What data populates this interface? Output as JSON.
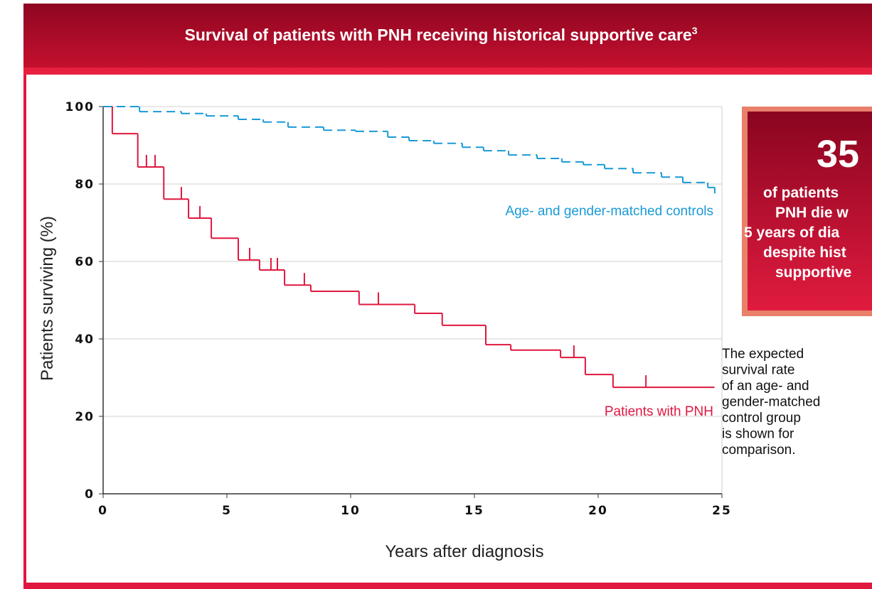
{
  "chart_data": {
    "type": "step",
    "title": "Survival of patients with PNH receiving historical supportive care",
    "title_note": "3",
    "x_label": "Years after diagnosis",
    "y_label": "Patients surviving (%)",
    "xlim": [
      0,
      25
    ],
    "xticks": [
      0,
      5,
      10,
      15,
      20,
      25
    ],
    "ylim": [
      0,
      100
    ],
    "yticks": [
      0,
      20,
      40,
      60,
      80,
      100
    ],
    "grid": true,
    "series": [
      {
        "name": "Patients with PNH",
        "color": "#e0173f",
        "style": "solid",
        "x": [
          0,
          0.37,
          1.4,
          2.45,
          3.45,
          4.37,
          5.46,
          6.32,
          7.33,
          8.39,
          10.34,
          12.59,
          13.7,
          15.46,
          16.47,
          18.48,
          19.48,
          20.6,
          24.7
        ],
        "values": [
          100,
          93.0,
          84.4,
          76.1,
          71.2,
          66.0,
          60.4,
          57.8,
          53.9,
          52.3,
          48.9,
          46.6,
          43.5,
          38.5,
          37.1,
          35.2,
          30.8,
          27.5,
          27.5
        ],
        "censored_x": [
          1.75,
          2.1,
          3.16,
          3.91,
          5.92,
          6.78,
          7.04,
          8.13,
          11.12,
          19.02,
          21.93
        ]
      },
      {
        "name": "Age- and gender-matched controls",
        "color": "#1a9ad6",
        "style": "dashed",
        "x": [
          0,
          1.47,
          3.16,
          4.17,
          5.46,
          6.47,
          7.47,
          8.91,
          10.2,
          11.5,
          12.36,
          13.36,
          14.51,
          15.37,
          16.38,
          17.53,
          18.53,
          19.4,
          20.26,
          21.41,
          22.56,
          23.42,
          24.43,
          24.71
        ],
        "values": [
          100,
          98.7,
          98.2,
          97.6,
          96.7,
          96.0,
          94.7,
          93.9,
          93.6,
          92.1,
          91.2,
          90.5,
          89.5,
          88.6,
          87.5,
          86.6,
          85.7,
          85.0,
          84.0,
          82.9,
          81.8,
          80.4,
          79.1,
          77.6
        ],
        "censored_x": []
      }
    ]
  },
  "callout": {
    "value": "35",
    "lines": [
      "of patients",
      "PNH die w",
      "5 years of dia",
      "despite hist",
      "supportive"
    ]
  },
  "note_lines": [
    "The expected",
    "survival rate",
    "of an age- and",
    "gender-matched",
    "control group",
    "is shown for",
    "comparison."
  ]
}
